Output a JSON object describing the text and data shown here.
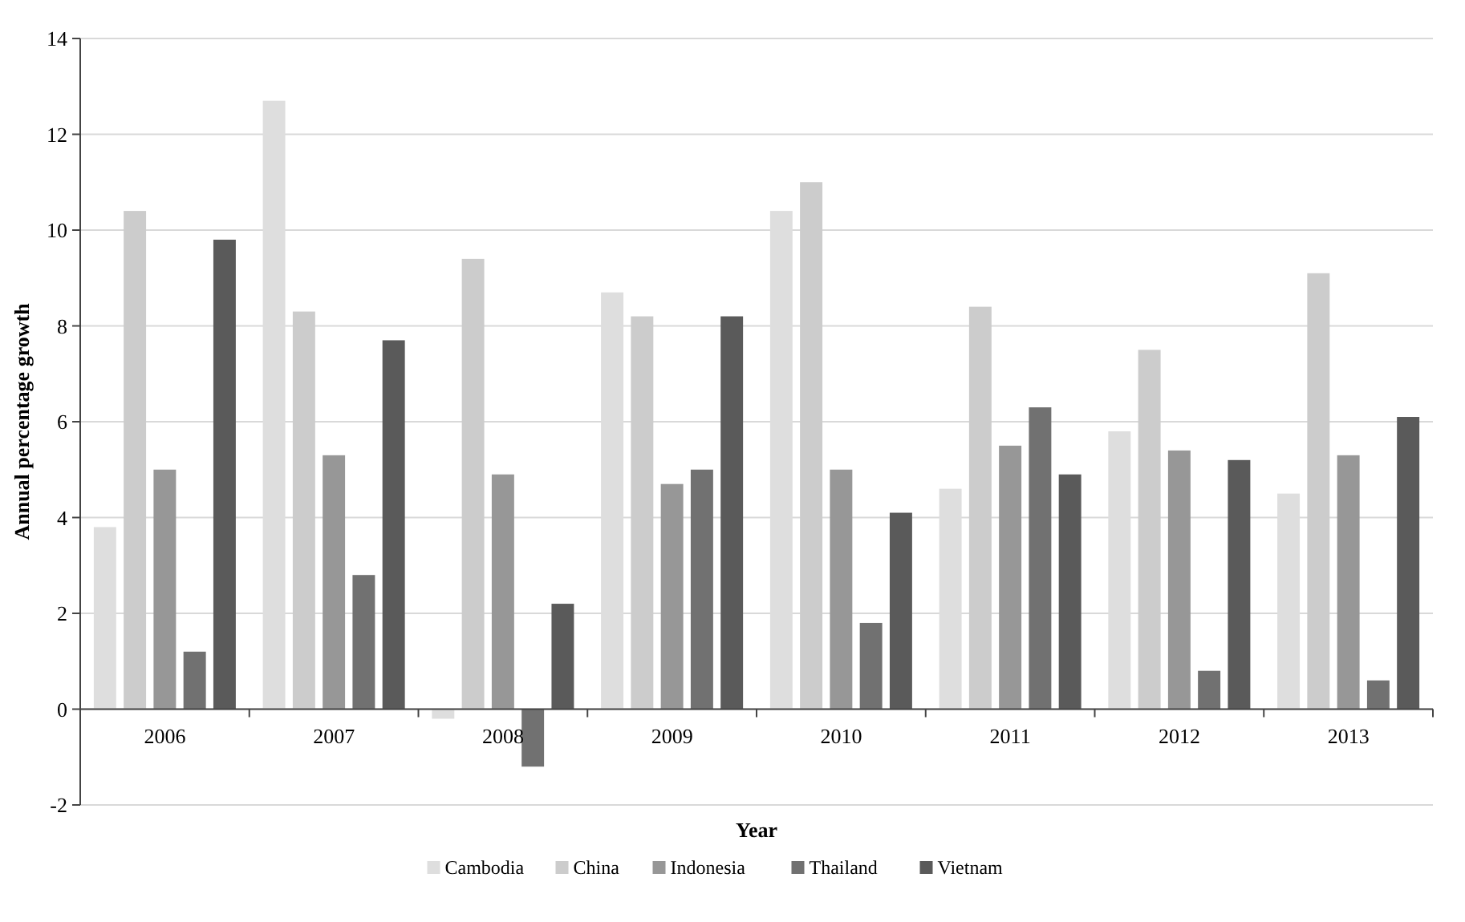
{
  "chart_data": {
    "type": "bar",
    "xlabel": "Year",
    "ylabel": "Annual percentage growth",
    "categories": [
      "2006",
      "2007",
      "2008",
      "2009",
      "2010",
      "2011",
      "2012",
      "2013"
    ],
    "series": [
      {
        "name": "Cambodia",
        "color": "#dedede",
        "values": [
          3.8,
          12.7,
          -0.2,
          8.7,
          10.4,
          4.6,
          5.8,
          4.5
        ]
      },
      {
        "name": "China",
        "color": "#cccccc",
        "values": [
          10.4,
          8.3,
          9.4,
          8.2,
          11.0,
          8.4,
          7.5,
          9.1
        ]
      },
      {
        "name": "Indonesia",
        "color": "#979797",
        "values": [
          5.0,
          5.3,
          4.9,
          4.7,
          5.0,
          5.5,
          5.4,
          5.3
        ]
      },
      {
        "name": "Thailand",
        "color": "#717171",
        "values": [
          1.2,
          2.8,
          -1.2,
          5.0,
          1.8,
          6.3,
          0.8,
          0.6
        ]
      },
      {
        "name": "Vietnam",
        "color": "#5a5a5a",
        "values": [
          9.8,
          7.7,
          2.2,
          8.2,
          4.1,
          4.9,
          5.2,
          6.1
        ]
      }
    ],
    "ylim": [
      -2,
      14
    ],
    "yticks": [
      -2,
      0,
      2,
      4,
      6,
      8,
      10,
      12,
      14
    ],
    "grid": "y",
    "legend": "bottom"
  }
}
